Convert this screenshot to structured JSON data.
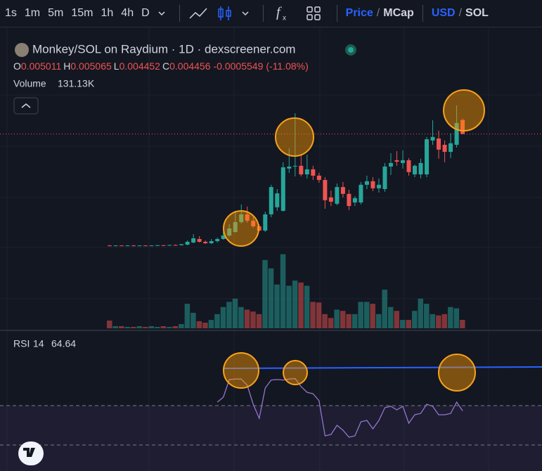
{
  "toolbar": {
    "timeframes": [
      "1s",
      "1m",
      "5m",
      "15m",
      "1h",
      "4h",
      "D"
    ],
    "active": "D",
    "price": "Price",
    "slash": "/",
    "mcap": "MCap",
    "usd": "USD",
    "sol": "SOL"
  },
  "chart_data": {
    "type": "candlestick",
    "title": "Monkey/SOL on Raydium · 1D · dexscreener.com",
    "ohlc_labels": [
      "O",
      "H",
      "L",
      "C"
    ],
    "change": -0.0005549,
    "change_pct": "(-11.08%)",
    "up_color": "#26a69a",
    "down_color": "#ef5350",
    "ylim": [
      0,
      0.00628
    ],
    "candles": [
      [
        5e-05,
        7e-05,
        3e-05,
        4e-05
      ],
      [
        4e-05,
        6e-05,
        3e-05,
        5e-05
      ],
      [
        5e-05,
        6e-05,
        3e-05,
        4e-05
      ],
      [
        4e-05,
        6e-05,
        3e-05,
        5e-05
      ],
      [
        5e-05,
        7e-05,
        4e-05,
        4e-05
      ],
      [
        4e-05,
        6e-05,
        3e-05,
        5e-05
      ],
      [
        5e-05,
        6e-05,
        4e-05,
        4e-05
      ],
      [
        4e-05,
        6e-05,
        3e-05,
        5e-05
      ],
      [
        5e-05,
        7e-05,
        4e-05,
        6e-05
      ],
      [
        6e-05,
        7e-05,
        4e-05,
        5e-05
      ],
      [
        5e-05,
        8e-05,
        4e-05,
        7e-05
      ],
      [
        7e-05,
        9e-05,
        5e-05,
        6e-05
      ],
      [
        6e-05,
        0.00011,
        5e-05,
        0.0001
      ],
      [
        8.3e-05,
        0.00025,
        5.6e-05,
        0.000195
      ],
      [
        0.000167,
        0.0005,
        0.000139,
        0.000334
      ],
      [
        0.000306,
        0.000417,
        0.000167,
        0.000195
      ],
      [
        0.000195,
        0.00025,
        0.000111,
        0.000139
      ],
      [
        0.000139,
        0.000306,
        0.000111,
        0.000222
      ],
      [
        0.000222,
        0.000361,
        0.000167,
        0.000306
      ],
      [
        0.000306,
        0.000584,
        0.000278,
        0.000445
      ],
      [
        0.000445,
        0.00089,
        0.000389,
        0.000723
      ],
      [
        0.000584,
        0.00142,
        0.000556,
        0.000973
      ],
      [
        0.000973,
        0.00167,
        0.000917,
        0.00128
      ],
      [
        0.00128,
        0.00159,
        0.00095,
        0.00103
      ],
      [
        0.00103,
        0.00117,
        0.00075,
        0.00081
      ],
      [
        0.00081,
        0.00089,
        0.00061,
        0.00064
      ],
      [
        0.00064,
        0.00139,
        0.00058,
        0.00128
      ],
      [
        0.00128,
        0.00245,
        0.00117,
        0.00236
      ],
      [
        0.00156,
        0.00228,
        0.00142,
        0.00211
      ],
      [
        0.00142,
        0.00334,
        0.00139,
        0.00314
      ],
      [
        0.00309,
        0.00389,
        0.00292,
        0.00317
      ],
      [
        0.00317,
        0.00528,
        0.00278,
        0.0032
      ],
      [
        0.0032,
        0.00364,
        0.00278,
        0.00286
      ],
      [
        0.00286,
        0.00364,
        0.0027,
        0.00306
      ],
      [
        0.00306,
        0.0032,
        0.00264,
        0.00281
      ],
      [
        0.00281,
        0.00292,
        0.00253,
        0.00264
      ],
      [
        0.00264,
        0.00275,
        0.0015,
        0.00184
      ],
      [
        0.00195,
        0.00222,
        0.00161,
        0.00178
      ],
      [
        0.0017,
        0.0025,
        0.00164,
        0.00236
      ],
      [
        0.00236,
        0.00256,
        0.00195,
        0.00209
      ],
      [
        0.00209,
        0.00225,
        0.00145,
        0.00161
      ],
      [
        0.00175,
        0.002,
        0.00161,
        0.00192
      ],
      [
        0.00175,
        0.00256,
        0.00167,
        0.00245
      ],
      [
        0.00245,
        0.00281,
        0.00228,
        0.00259
      ],
      [
        0.00259,
        0.00275,
        0.0022,
        0.00231
      ],
      [
        0.00231,
        0.0027,
        0.00214,
        0.00245
      ],
      [
        0.00228,
        0.00331,
        0.00217,
        0.00317
      ],
      [
        0.00317,
        0.0037,
        0.00284,
        0.00331
      ],
      [
        0.00342,
        0.00378,
        0.0032,
        0.00336
      ],
      [
        0.00331,
        0.00381,
        0.00309,
        0.00342
      ],
      [
        0.00342,
        0.0035,
        0.00281,
        0.00295
      ],
      [
        0.00286,
        0.00325,
        0.00275,
        0.0032
      ],
      [
        0.00286,
        0.00348,
        0.0027,
        0.00331
      ],
      [
        0.00286,
        0.00434,
        0.00275,
        0.00425
      ],
      [
        0.0042,
        0.005,
        0.00403,
        0.00434
      ],
      [
        0.00428,
        0.00459,
        0.00348,
        0.00384
      ],
      [
        0.00403,
        0.0042,
        0.00334,
        0.00375
      ],
      [
        0.00375,
        0.00448,
        0.0035,
        0.00409
      ],
      [
        0.00403,
        0.00559,
        0.00392,
        0.00489
      ],
      [
        0.005011,
        0.005065,
        0.004452,
        0.004456
      ]
    ],
    "volume": {
      "name": "Volume",
      "last_label": "131.13K",
      "ylim": [
        0,
        1200000
      ],
      "values": [
        120000,
        33000,
        33000,
        22000,
        22000,
        33000,
        22000,
        33000,
        22000,
        33000,
        22000,
        33000,
        66000,
        380000,
        240000,
        110000,
        87000,
        130000,
        220000,
        330000,
        410000,
        460000,
        330000,
        290000,
        260000,
        220000,
        1060000,
        930000,
        680000,
        1150000,
        660000,
        740000,
        710000,
        660000,
        410000,
        400000,
        220000,
        160000,
        290000,
        270000,
        220000,
        220000,
        410000,
        410000,
        380000,
        220000,
        600000,
        330000,
        270000,
        130000,
        130000,
        270000,
        460000,
        380000,
        220000,
        200000,
        220000,
        330000,
        310000,
        131130
      ]
    },
    "rsi": {
      "name": "RSI",
      "period": 14,
      "ylim": [
        0,
        100
      ],
      "levels": [
        70,
        30
      ],
      "color": "#9575cd",
      "values": [
        null,
        null,
        null,
        null,
        null,
        null,
        null,
        null,
        null,
        null,
        null,
        null,
        null,
        null,
        null,
        null,
        null,
        null,
        73.6,
        78.6,
        96.4,
        97,
        97,
        90.7,
        71.4,
        57.1,
        87.9,
        96,
        96.5,
        96,
        97,
        97.5,
        89.3,
        83.6,
        82.1,
        75,
        39.3,
        40.7,
        50,
        45,
        37.9,
        39.3,
        53.6,
        55,
        46.4,
        55,
        67.9,
        69.3,
        65.7,
        69.3,
        52.1,
        60.7,
        62.1,
        71.4,
        69.3,
        60.7,
        60.7,
        62.1,
        73.6,
        64.64
      ]
    }
  }
}
